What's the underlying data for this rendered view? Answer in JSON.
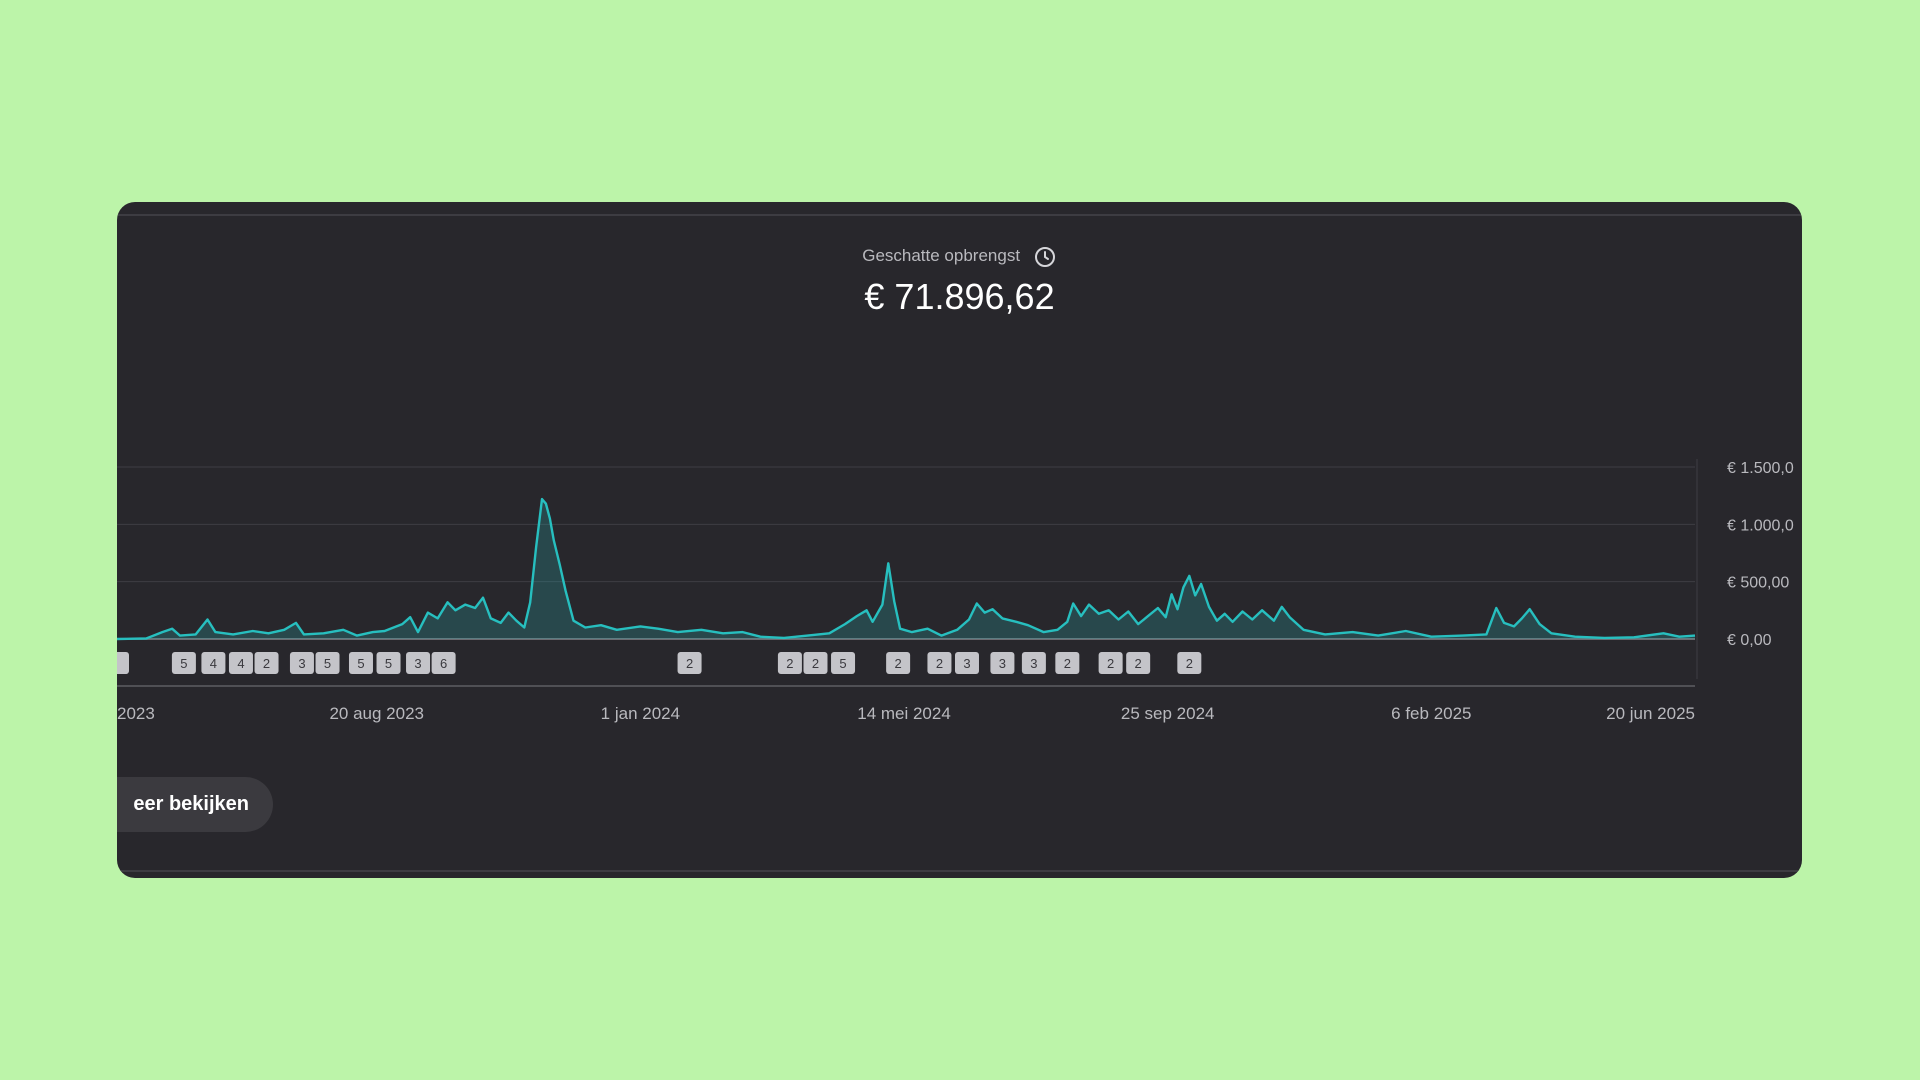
{
  "metric": {
    "label": "Geschatte opbrengst",
    "value": "€ 71.896,62",
    "icon": "clock-icon"
  },
  "colors": {
    "page_background": "#bcf4a9",
    "card_background": "#28272c",
    "series_line": "#27bfbf",
    "marker_box": "#c4c4c9"
  },
  "more_button": {
    "label": "eer bekijken"
  },
  "chart_data": {
    "type": "area",
    "title": "Geschatte opbrengst",
    "y_ticks": [
      "€ 0,00",
      "€ 500,00",
      "€ 1.000,0",
      "€ 1.500,0"
    ],
    "y_tick_values": [
      0,
      500,
      1000,
      1500
    ],
    "ylim": [
      0,
      1500
    ],
    "x_tick_labels": [
      "2023",
      "20 aug 2023",
      "1 jan 2024",
      "14 mei 2024",
      "25 sep 2024",
      "6 feb 2025",
      "20 jun 2025"
    ],
    "x_tick_dates": [
      "2023-04-10",
      "2023-08-20",
      "2024-01-01",
      "2024-05-14",
      "2024-09-25",
      "2025-02-06",
      "2025-06-20"
    ],
    "xlim": [
      "2023-04-10",
      "2025-06-20"
    ],
    "grid": true,
    "legend": "none",
    "series": [
      {
        "values": [
          [
            "2023-04-10",
            0
          ],
          [
            "2023-04-25",
            5
          ],
          [
            "2023-05-03",
            60
          ],
          [
            "2023-05-08",
            90
          ],
          [
            "2023-05-12",
            30
          ],
          [
            "2023-05-20",
            40
          ],
          [
            "2023-05-26",
            170
          ],
          [
            "2023-05-30",
            60
          ],
          [
            "2023-06-08",
            40
          ],
          [
            "2023-06-18",
            70
          ],
          [
            "2023-06-26",
            50
          ],
          [
            "2023-07-04",
            80
          ],
          [
            "2023-07-10",
            140
          ],
          [
            "2023-07-14",
            40
          ],
          [
            "2023-07-24",
            50
          ],
          [
            "2023-08-03",
            80
          ],
          [
            "2023-08-10",
            30
          ],
          [
            "2023-08-18",
            60
          ],
          [
            "2023-08-24",
            70
          ],
          [
            "2023-09-02",
            130
          ],
          [
            "2023-09-06",
            190
          ],
          [
            "2023-09-10",
            60
          ],
          [
            "2023-09-15",
            230
          ],
          [
            "2023-09-20",
            180
          ],
          [
            "2023-09-25",
            320
          ],
          [
            "2023-09-29",
            250
          ],
          [
            "2023-10-04",
            300
          ],
          [
            "2023-10-09",
            270
          ],
          [
            "2023-10-13",
            360
          ],
          [
            "2023-10-17",
            180
          ],
          [
            "2023-10-22",
            140
          ],
          [
            "2023-10-26",
            230
          ],
          [
            "2023-10-30",
            160
          ],
          [
            "2023-11-03",
            100
          ],
          [
            "2023-11-06",
            320
          ],
          [
            "2023-11-09",
            800
          ],
          [
            "2023-11-12",
            1220
          ],
          [
            "2023-11-14",
            1180
          ],
          [
            "2023-11-16",
            1050
          ],
          [
            "2023-11-18",
            860
          ],
          [
            "2023-11-21",
            650
          ],
          [
            "2023-11-24",
            420
          ],
          [
            "2023-11-28",
            160
          ],
          [
            "2023-12-04",
            100
          ],
          [
            "2023-12-12",
            120
          ],
          [
            "2023-12-20",
            80
          ],
          [
            "2024-01-01",
            110
          ],
          [
            "2024-01-10",
            90
          ],
          [
            "2024-01-20",
            60
          ],
          [
            "2024-02-01",
            80
          ],
          [
            "2024-02-12",
            50
          ],
          [
            "2024-02-22",
            60
          ],
          [
            "2024-03-02",
            20
          ],
          [
            "2024-03-14",
            10
          ],
          [
            "2024-03-26",
            30
          ],
          [
            "2024-04-06",
            50
          ],
          [
            "2024-04-14",
            130
          ],
          [
            "2024-04-20",
            200
          ],
          [
            "2024-04-25",
            250
          ],
          [
            "2024-04-28",
            150
          ],
          [
            "2024-05-03",
            300
          ],
          [
            "2024-05-06",
            660
          ],
          [
            "2024-05-09",
            330
          ],
          [
            "2024-05-12",
            90
          ],
          [
            "2024-05-18",
            60
          ],
          [
            "2024-05-26",
            90
          ],
          [
            "2024-06-02",
            30
          ],
          [
            "2024-06-10",
            80
          ],
          [
            "2024-06-16",
            170
          ],
          [
            "2024-06-20",
            310
          ],
          [
            "2024-06-24",
            230
          ],
          [
            "2024-06-28",
            260
          ],
          [
            "2024-07-03",
            180
          ],
          [
            "2024-07-10",
            150
          ],
          [
            "2024-07-16",
            120
          ],
          [
            "2024-07-24",
            60
          ],
          [
            "2024-07-31",
            80
          ],
          [
            "2024-08-05",
            150
          ],
          [
            "2024-08-08",
            310
          ],
          [
            "2024-08-12",
            200
          ],
          [
            "2024-08-16",
            300
          ],
          [
            "2024-08-21",
            220
          ],
          [
            "2024-08-26",
            250
          ],
          [
            "2024-08-31",
            170
          ],
          [
            "2024-09-05",
            240
          ],
          [
            "2024-09-10",
            130
          ],
          [
            "2024-09-15",
            200
          ],
          [
            "2024-09-20",
            270
          ],
          [
            "2024-09-24",
            190
          ],
          [
            "2024-09-27",
            390
          ],
          [
            "2024-09-30",
            260
          ],
          [
            "2024-10-03",
            450
          ],
          [
            "2024-10-06",
            550
          ],
          [
            "2024-10-09",
            380
          ],
          [
            "2024-10-12",
            480
          ],
          [
            "2024-10-16",
            280
          ],
          [
            "2024-10-20",
            160
          ],
          [
            "2024-10-24",
            220
          ],
          [
            "2024-10-28",
            150
          ],
          [
            "2024-11-02",
            240
          ],
          [
            "2024-11-07",
            170
          ],
          [
            "2024-11-12",
            250
          ],
          [
            "2024-11-18",
            160
          ],
          [
            "2024-11-22",
            280
          ],
          [
            "2024-11-26",
            190
          ],
          [
            "2024-12-03",
            80
          ],
          [
            "2024-12-14",
            40
          ],
          [
            "2024-12-28",
            60
          ],
          [
            "2025-01-10",
            30
          ],
          [
            "2025-01-24",
            70
          ],
          [
            "2025-02-06",
            20
          ],
          [
            "2025-02-22",
            30
          ],
          [
            "2025-03-06",
            40
          ],
          [
            "2025-03-11",
            270
          ],
          [
            "2025-03-15",
            140
          ],
          [
            "2025-03-20",
            110
          ],
          [
            "2025-03-24",
            180
          ],
          [
            "2025-03-28",
            260
          ],
          [
            "2025-04-02",
            130
          ],
          [
            "2025-04-08",
            50
          ],
          [
            "2025-04-20",
            20
          ],
          [
            "2025-05-05",
            10
          ],
          [
            "2025-05-20",
            15
          ],
          [
            "2025-06-04",
            50
          ],
          [
            "2025-06-12",
            20
          ],
          [
            "2025-06-20",
            30
          ]
        ]
      }
    ],
    "markers": [
      {
        "x": "2023-04-10",
        "label": ""
      },
      {
        "x": "2023-05-14",
        "label": "5"
      },
      {
        "x": "2023-05-29",
        "label": "4"
      },
      {
        "x": "2023-06-12",
        "label": "4"
      },
      {
        "x": "2023-06-25",
        "label": "2"
      },
      {
        "x": "2023-07-13",
        "label": "3"
      },
      {
        "x": "2023-07-26",
        "label": "5"
      },
      {
        "x": "2023-08-12",
        "label": "5"
      },
      {
        "x": "2023-08-26",
        "label": "5"
      },
      {
        "x": "2023-09-10",
        "label": "3"
      },
      {
        "x": "2023-09-23",
        "label": "6"
      },
      {
        "x": "2024-01-26",
        "label": "2"
      },
      {
        "x": "2024-03-17",
        "label": "2"
      },
      {
        "x": "2024-03-30",
        "label": "2"
      },
      {
        "x": "2024-04-13",
        "label": "5"
      },
      {
        "x": "2024-05-11",
        "label": "2"
      },
      {
        "x": "2024-06-01",
        "label": "2"
      },
      {
        "x": "2024-06-15",
        "label": "3"
      },
      {
        "x": "2024-07-03",
        "label": "3"
      },
      {
        "x": "2024-07-19",
        "label": "3"
      },
      {
        "x": "2024-08-05",
        "label": "2"
      },
      {
        "x": "2024-08-27",
        "label": "2"
      },
      {
        "x": "2024-09-10",
        "label": "2"
      },
      {
        "x": "2024-10-06",
        "label": "2"
      }
    ]
  }
}
